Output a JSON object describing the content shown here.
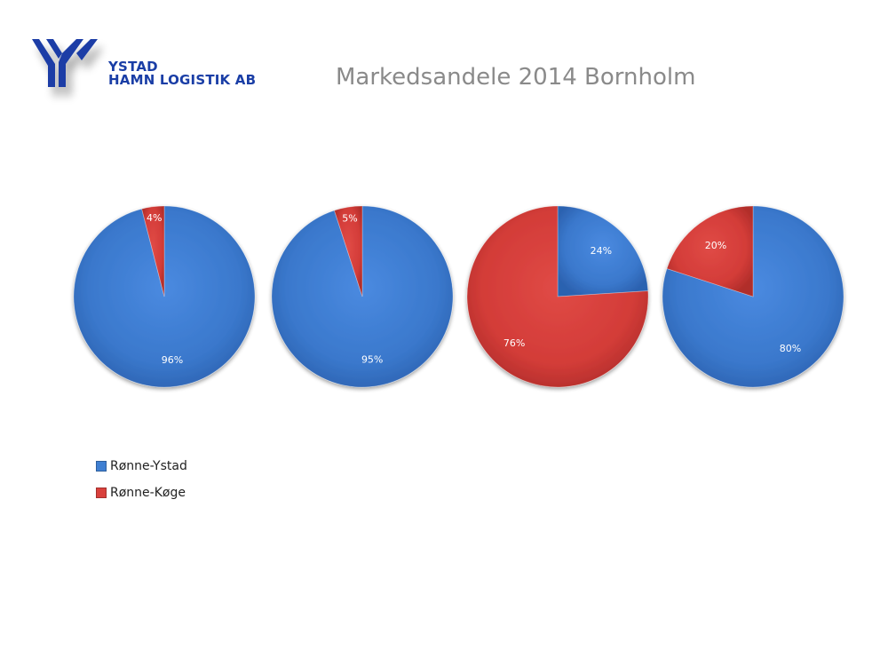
{
  "logo": {
    "line1": "YSTAD",
    "line2": "HAMN LOGISTIK AB",
    "color": "#1a3ea6"
  },
  "title": "Markedsandele 2014 Bornholm",
  "colors": {
    "Rønne-Ystad": "#3f7fd2",
    "Rønne-Køge": "#d9403c"
  },
  "legend": {
    "items": [
      "Rønne-Ystad",
      "Rønne-Køge"
    ],
    "placement": "bottom-left"
  },
  "chart_data": [
    {
      "type": "pie",
      "title": "",
      "labels": [
        "Rønne-Ystad",
        "Rønne-Køge"
      ],
      "values": [
        96,
        4
      ],
      "data_labels": [
        "96%",
        "4%"
      ]
    },
    {
      "type": "pie",
      "title": "",
      "labels": [
        "Rønne-Ystad",
        "Rønne-Køge"
      ],
      "values": [
        95,
        5
      ],
      "data_labels": [
        "95%",
        "5%"
      ]
    },
    {
      "type": "pie",
      "title": "",
      "labels": [
        "Rønne-Ystad",
        "Rønne-Køge"
      ],
      "values": [
        24,
        76
      ],
      "data_labels": [
        "24%",
        "76%"
      ]
    },
    {
      "type": "pie",
      "title": "",
      "labels": [
        "Rønne-Ystad",
        "Rønne-Køge"
      ],
      "values": [
        80,
        20
      ],
      "data_labels": [
        "80%",
        "20%"
      ]
    }
  ]
}
